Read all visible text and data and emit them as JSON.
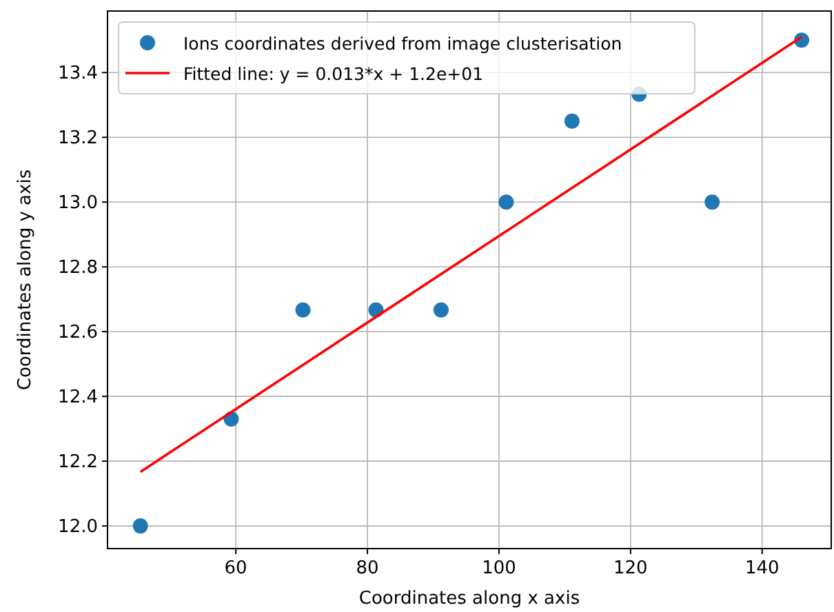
{
  "chart_data": {
    "type": "scatter",
    "xlabel": "Coordinates along x axis",
    "ylabel": "Coordinates along y axis",
    "xlim": [
      40.5,
      150.5
    ],
    "xticks": [
      60,
      80,
      100,
      120,
      140
    ],
    "ylim": [
      11.93,
      13.59
    ],
    "yticks": [
      {
        "value": 12.0,
        "label": "12.0"
      },
      {
        "value": 12.2,
        "label": "12.2"
      },
      {
        "value": 12.4,
        "label": "12.4"
      },
      {
        "value": 12.6,
        "label": "12.6"
      },
      {
        "value": 12.8,
        "label": "12.8"
      },
      {
        "value": 13.0,
        "label": "13.0"
      },
      {
        "value": 13.2,
        "label": "13.2"
      },
      {
        "value": 13.4,
        "label": "13.4"
      }
    ],
    "grid": true,
    "legend": "top left",
    "series": [
      {
        "name": "Ions coordinates derived from image clusterisation",
        "marker": "circle",
        "color": "#1f77b4",
        "x": [
          45.5,
          59.3,
          70.2,
          81.3,
          91.2,
          101.1,
          111.1,
          121.3,
          132.4,
          146
        ],
        "values": [
          12.0,
          12.33,
          12.667,
          12.667,
          12.667,
          13.0,
          13.25,
          13.333,
          13.0,
          13.5
        ]
      },
      {
        "name": "Fitted line: y = 0.013*x + 1.2e+01",
        "type": "line",
        "marker": "none",
        "line_style": "solid",
        "color": "#ff0000",
        "x": [
          45.5,
          146
        ],
        "values": [
          12.167,
          13.51
        ]
      }
    ]
  }
}
